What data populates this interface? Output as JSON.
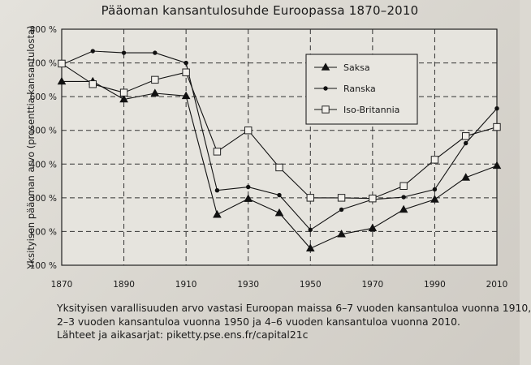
{
  "chart_data": {
    "type": "line",
    "title": "Pääoman kansantulosuhde Euroopassa 1870–2010",
    "ylabel": "Yksityisen pääoman arvo (prosenttia kansantulosta)",
    "xlabel": "",
    "xlim": [
      1870,
      2010
    ],
    "ylim": [
      100,
      800
    ],
    "x_ticks": [
      1870,
      1890,
      1910,
      1930,
      1950,
      1970,
      1990,
      2010
    ],
    "x_tick_labels": [
      "1870",
      "1890",
      "1910",
      "1930",
      "1950",
      "1970",
      "1990",
      "2010"
    ],
    "y_ticks": [
      100,
      200,
      300,
      400,
      500,
      600,
      700,
      800
    ],
    "y_tick_labels": [
      "100 %",
      "200 %",
      "300 %",
      "400 %",
      "500 %",
      "600 %",
      "700 %",
      "800 %"
    ],
    "grid": true,
    "legend_position": "top-right",
    "x": [
      1870,
      1880,
      1890,
      1900,
      1910,
      1920,
      1930,
      1940,
      1950,
      1960,
      1970,
      1980,
      1990,
      2000,
      2010
    ],
    "series": [
      {
        "name": "Saksa",
        "marker": "triangle",
        "values": [
          645,
          645,
          592,
          610,
          602,
          250,
          297,
          255,
          150,
          192,
          210,
          265,
          295,
          360,
          395
        ]
      },
      {
        "name": "Ranska",
        "marker": "dot",
        "values": [
          695,
          735,
          730,
          730,
          700,
          322,
          332,
          308,
          205,
          265,
          295,
          302,
          325,
          462,
          565
        ]
      },
      {
        "name": "Iso-Britannia",
        "marker": "square",
        "values": [
          698,
          637,
          612,
          650,
          672,
          437,
          500,
          390,
          300,
          300,
          298,
          335,
          413,
          483,
          510
        ]
      }
    ],
    "caption_lines": [
      "Yksityisen varallisuuden arvo vastasi Euroopan maissa 6–7 vuoden kansantuloa vuonna 1910,",
      "2–3 vuoden kansantuloa vuonna 1950 ja 4–6 vuoden kansantuloa vuonna 2010.",
      "Lähteet ja aikasarjat: piketty.pse.ens.fr/capital21c"
    ]
  }
}
